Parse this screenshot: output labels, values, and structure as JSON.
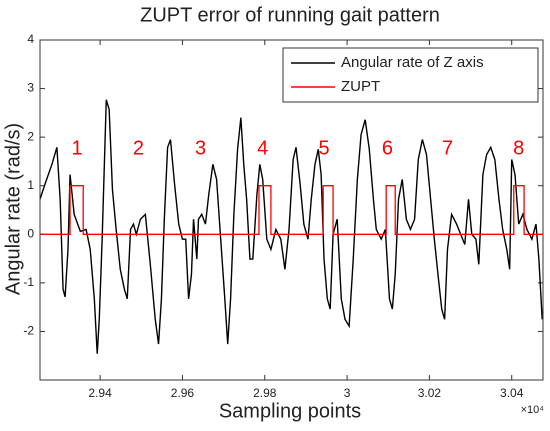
{
  "chart_data": {
    "type": "line",
    "title": "ZUPT error of running gait pattern",
    "xlabel": "Sampling points",
    "ylabel": "Angular rate (rad/s)",
    "x_exponent": "×10⁴",
    "xlim": [
      29254,
      30476
    ],
    "ylim": [
      -3,
      4
    ],
    "xticks": [
      {
        "value": 29400,
        "label": "2.94"
      },
      {
        "value": 29600,
        "label": "2.96"
      },
      {
        "value": 29800,
        "label": "2.98"
      },
      {
        "value": 30000,
        "label": "3"
      },
      {
        "value": 30200,
        "label": "3.02"
      },
      {
        "value": 30400,
        "label": "3.04"
      }
    ],
    "yticks": [
      -2,
      -1,
      0,
      1,
      2,
      3,
      4
    ],
    "grid": false,
    "legend": "northeast",
    "series": [
      {
        "name": "Angular rate of Z axis",
        "color": "#000000",
        "x": [
          29254,
          29266,
          29283,
          29295,
          29303,
          29310,
          29315,
          29322,
          29327,
          29337,
          29352,
          29366,
          29376,
          29386,
          29393,
          29398,
          29405,
          29415,
          29422,
          29430,
          29439,
          29449,
          29459,
          29466,
          29474,
          29481,
          29488,
          29498,
          29510,
          29522,
          29534,
          29542,
          29549,
          29556,
          29564,
          29571,
          29581,
          29591,
          29600,
          29608,
          29615,
          29622,
          29627,
          29635,
          29639,
          29647,
          29656,
          29664,
          29674,
          29683,
          29693,
          29703,
          29710,
          29717,
          29725,
          29734,
          29742,
          29749,
          29756,
          29764,
          29771,
          29781,
          29788,
          29795,
          29805,
          29815,
          29827,
          29839,
          29849,
          29859,
          29869,
          29876,
          29886,
          29895,
          29905,
          29913,
          29922,
          29930,
          29937,
          29944,
          29952,
          29959,
          29966,
          29976,
          29986,
          29995,
          30005,
          30015,
          30025,
          30034,
          30044,
          30054,
          30064,
          30071,
          30083,
          30093,
          30103,
          30110,
          30117,
          30125,
          30134,
          30144,
          30154,
          30164,
          30173,
          30183,
          30193,
          30203,
          30212,
          30222,
          30230,
          30237,
          30244,
          30254,
          30266,
          30276,
          30286,
          30295,
          30303,
          30313,
          30320,
          30330,
          30339,
          30349,
          30359,
          30369,
          30378,
          30388,
          30395,
          30400,
          30408,
          30417,
          30427,
          30437,
          30449,
          30459,
          30466,
          30474
        ],
        "values": [
          0.72,
          1.03,
          1.44,
          1.79,
          0.72,
          -1.13,
          -1.29,
          -0.31,
          1.23,
          0.41,
          0.06,
          0.1,
          -0.31,
          -1.33,
          -2.46,
          -1.75,
          -0.1,
          2.77,
          2.57,
          0.92,
          0.1,
          -0.72,
          -1.13,
          -1.33,
          0.1,
          0.21,
          0,
          0.31,
          0.41,
          -0.62,
          -1.75,
          -2.26,
          -1.33,
          0.31,
          1.79,
          1.95,
          1.03,
          0.21,
          -0.1,
          -0.1,
          -1.33,
          -0.82,
          0.31,
          -0.51,
          0.31,
          0.41,
          0.21,
          0.82,
          1.44,
          1.13,
          -0.1,
          -1.33,
          -2.26,
          -1.33,
          0.41,
          1.75,
          2.4,
          1.44,
          0.72,
          -0.51,
          -0.51,
          0.82,
          1.44,
          1.13,
          -0.1,
          -0.31,
          0.1,
          -0.1,
          -0.72,
          0.1,
          1.54,
          1.79,
          1.03,
          0.21,
          -0.1,
          0.72,
          1.44,
          1.75,
          1.23,
          -0.51,
          -1.33,
          -1.54,
          0,
          0.31,
          -1.33,
          -1.75,
          -1.89,
          -0.51,
          1.13,
          2.05,
          2.36,
          1.75,
          0.72,
          0.1,
          -0.1,
          0.1,
          -1.33,
          -1.54,
          -0.82,
          0.72,
          1.13,
          0.31,
          0.1,
          0.31,
          1.54,
          1.95,
          1.64,
          0.72,
          -0.1,
          -0.92,
          -1.54,
          -1.75,
          -0.31,
          0.41,
          0.21,
          0,
          -0.21,
          0.72,
          0,
          -0.1,
          -0.62,
          1.23,
          1.64,
          1.79,
          1.54,
          0.72,
          0.1,
          -0.31,
          -0.72,
          1.54,
          1.23,
          0.21,
          0.41,
          0.1,
          -0.1,
          0.21,
          -0.51,
          -1.75
        ]
      },
      {
        "name": "ZUPT",
        "color": "#ff0000",
        "x": [
          29254,
          29327,
          29327,
          29359,
          29359,
          29786,
          29786,
          29815,
          29815,
          29942,
          29942,
          29966,
          29966,
          30095,
          30095,
          30117,
          30117,
          30405,
          30405,
          30430,
          30430,
          30476
        ],
        "values": [
          0,
          0,
          1,
          1,
          0,
          0,
          1,
          1,
          0,
          0,
          1,
          1,
          0,
          0,
          1,
          1,
          0,
          0,
          1,
          1,
          0,
          0
        ]
      }
    ],
    "annotations": [
      {
        "text": "1",
        "x": 29344,
        "y": 1.75,
        "color": "#ff0000"
      },
      {
        "text": "2",
        "x": 29493,
        "y": 1.75,
        "color": "#ff0000"
      },
      {
        "text": "3",
        "x": 29644,
        "y": 1.75,
        "color": "#ff0000"
      },
      {
        "text": "4",
        "x": 29795,
        "y": 1.75,
        "color": "#ff0000"
      },
      {
        "text": "5",
        "x": 29944,
        "y": 1.75,
        "color": "#ff0000"
      },
      {
        "text": "6",
        "x": 30098,
        "y": 1.75,
        "color": "#ff0000"
      },
      {
        "text": "7",
        "x": 30244,
        "y": 1.75,
        "color": "#ff0000"
      },
      {
        "text": "8",
        "x": 30417,
        "y": 1.75,
        "color": "#ff0000"
      }
    ]
  }
}
